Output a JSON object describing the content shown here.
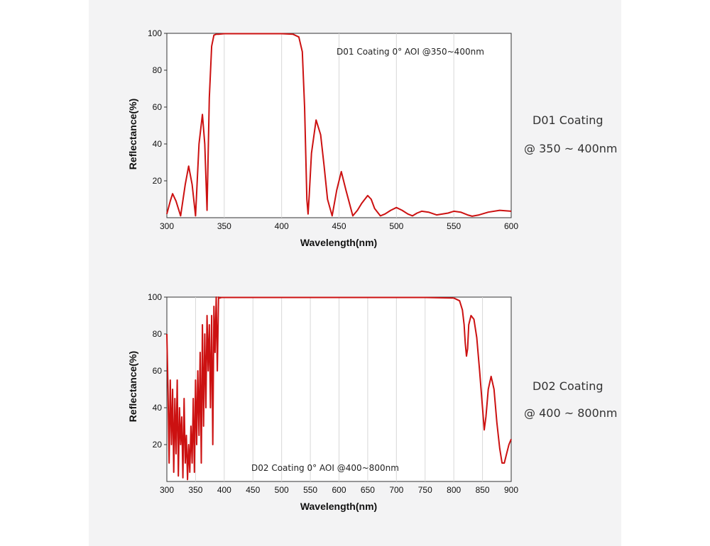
{
  "colors": {
    "curve": "#cc1111",
    "grid": "#d8d8d8",
    "frame": "#333333"
  },
  "side_labels": {
    "d01_line1": "D01 Coating",
    "d01_line2": "@ 350 ~ 400nm",
    "d02_line1": "D02 Coating",
    "d02_line2": "@ 400 ~ 800nm"
  },
  "chart_data": [
    {
      "type": "line",
      "title": "",
      "annotation": "D01 Coating  0°  AOI @350~400nm",
      "xlabel": "Wavelength(nm)",
      "ylabel": "Reflectance(%)",
      "xlim": [
        300,
        600
      ],
      "ylim": [
        0,
        100
      ],
      "xticks": [
        300,
        350,
        400,
        450,
        500,
        550,
        600
      ],
      "yticks": [
        20,
        40,
        60,
        80,
        100
      ],
      "grid": "vertical",
      "series": [
        {
          "x": [
            300,
            303,
            305,
            308,
            312,
            316,
            319,
            322,
            325,
            328,
            331,
            333,
            335,
            337,
            339,
            341,
            343,
            345,
            350,
            360,
            380,
            400,
            410,
            415,
            418,
            420,
            421,
            422,
            423,
            424,
            426,
            430,
            434,
            437,
            440,
            444,
            448,
            452,
            456,
            462,
            466,
            470,
            475,
            478,
            481,
            486,
            490,
            495,
            500,
            505,
            510,
            514,
            518,
            522,
            528,
            535,
            545,
            550,
            556,
            562,
            566,
            572,
            580,
            590,
            600
          ],
          "y": [
            2,
            9,
            13,
            9,
            1,
            18,
            28,
            18,
            1,
            40,
            56,
            40,
            4,
            65,
            93,
            99,
            99.5,
            99.5,
            99.8,
            99.8,
            99.8,
            99.8,
            99.5,
            98,
            90,
            60,
            35,
            10,
            2,
            12,
            35,
            53,
            45,
            28,
            10,
            1,
            15,
            25,
            15,
            1,
            4,
            8,
            12,
            10,
            5,
            1,
            2,
            4,
            5.5,
            4,
            2,
            1,
            2.5,
            3.5,
            3,
            1.5,
            2.5,
            3.5,
            3,
            1.5,
            0.8,
            1.5,
            3,
            4,
            3.5
          ]
        }
      ]
    },
    {
      "type": "line",
      "title": "",
      "annotation": "D02 Coating  0°  AOI @400~800nm",
      "xlabel": "Wavelength(nm)",
      "ylabel": "Reflectance(%)",
      "xlim": [
        300,
        900
      ],
      "ylim": [
        0,
        100
      ],
      "xticks": [
        300,
        350,
        400,
        450,
        500,
        550,
        600,
        650,
        700,
        750,
        800,
        850,
        900
      ],
      "yticks": [
        20,
        40,
        60,
        80,
        100
      ],
      "grid": "vertical",
      "series": [
        {
          "x": [
            300,
            302,
            304,
            306,
            308,
            310,
            312,
            314,
            316,
            318,
            320,
            322,
            324,
            326,
            328,
            330,
            332,
            334,
            336,
            338,
            340,
            342,
            344,
            346,
            348,
            350,
            352,
            354,
            356,
            358,
            360,
            362,
            364,
            366,
            368,
            370,
            372,
            374,
            376,
            378,
            380,
            382,
            384,
            386,
            388,
            390,
            392,
            395,
            400,
            450,
            500,
            550,
            600,
            650,
            700,
            750,
            800,
            810,
            815,
            818,
            820,
            822,
            824,
            826,
            830,
            835,
            840,
            845,
            850,
            853,
            856,
            860,
            865,
            870,
            875,
            880,
            884,
            888,
            892,
            896,
            900
          ],
          "y": [
            80,
            50,
            10,
            55,
            20,
            50,
            5,
            45,
            15,
            55,
            3,
            40,
            20,
            35,
            2,
            45,
            10,
            25,
            1,
            20,
            5,
            30,
            10,
            45,
            5,
            55,
            20,
            60,
            25,
            70,
            10,
            85,
            30,
            80,
            40,
            90,
            60,
            85,
            40,
            90,
            20,
            95,
            70,
            100,
            60,
            100,
            99.5,
            99.8,
            99.8,
            99.8,
            99.8,
            99.8,
            99.8,
            99.8,
            99.8,
            99.8,
            99.5,
            98,
            93,
            85,
            75,
            68,
            72,
            85,
            90,
            88,
            78,
            60,
            40,
            28,
            35,
            50,
            57,
            50,
            32,
            18,
            10,
            10,
            15,
            20,
            23
          ]
        }
      ]
    }
  ]
}
